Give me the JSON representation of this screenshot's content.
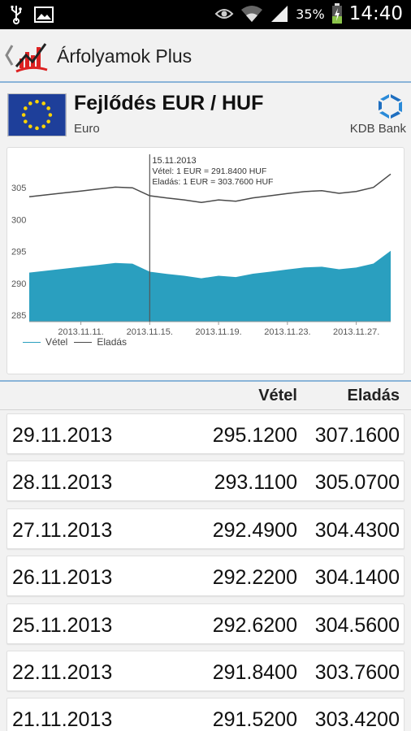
{
  "status_bar": {
    "battery_percent": "35%",
    "time": "14:40",
    "icons": [
      "usb-icon",
      "image-icon",
      "eye-icon",
      "wifi-icon",
      "signal-icon",
      "battery-icon"
    ]
  },
  "action_bar": {
    "title": "Árfolyamok Plus",
    "icons": [
      "back-chevron-icon",
      "app-logo-icon"
    ]
  },
  "header": {
    "title": "Fejlődés EUR / HUF",
    "subtitle": "Euro",
    "bank": "KDB Bank"
  },
  "chart_data": {
    "type": "area",
    "x": [
      "2013.11.08",
      "2013.11.09",
      "2013.11.10",
      "2013.11.11",
      "2013.11.12",
      "2013.11.13",
      "2013.11.14",
      "2013.11.15",
      "2013.11.16",
      "2013.11.17",
      "2013.11.18",
      "2013.11.19",
      "2013.11.20",
      "2013.11.21",
      "2013.11.22",
      "2013.11.23",
      "2013.11.24",
      "2013.11.25",
      "2013.11.26",
      "2013.11.27",
      "2013.11.28",
      "2013.11.29"
    ],
    "tick_labels": [
      "2013.11.11.",
      "2013.11.15.",
      "2013.11.19.",
      "2013.11.23.",
      "2013.11.27."
    ],
    "tick_indices": [
      3,
      7,
      11,
      15,
      19
    ],
    "series": [
      {
        "name": "Vétel",
        "color": "#2a9fbf",
        "values": [
          291.7,
          292.0,
          292.3,
          292.6,
          292.9,
          293.2,
          293.1,
          291.84,
          291.5,
          291.2,
          290.8,
          291.2,
          291.0,
          291.52,
          291.84,
          292.2,
          292.5,
          292.62,
          292.22,
          292.49,
          293.11,
          295.12
        ]
      },
      {
        "name": "Eladás",
        "color": "#4a4a4a",
        "values": [
          303.6,
          303.9,
          304.2,
          304.5,
          304.8,
          305.1,
          305.0,
          303.76,
          303.4,
          303.1,
          302.7,
          303.1,
          302.9,
          303.42,
          303.76,
          304.1,
          304.4,
          304.56,
          304.14,
          304.43,
          305.07,
          307.16
        ]
      }
    ],
    "y_ticks": [
      "285",
      "290",
      "295",
      "300",
      "305"
    ],
    "ylim": [
      284,
      310
    ],
    "tooltip": {
      "index": 7,
      "date": "15.11.2013",
      "line1": "Vétel: 1 EUR = 291.8400 HUF",
      "line2": "Eladás: 1 EUR = 303.7600 HUF"
    },
    "legend": [
      "Vétel",
      "Eladás"
    ],
    "grid": false
  },
  "table": {
    "columns": [
      "Vétel",
      "Eladás"
    ],
    "rows": [
      {
        "date": "29.11.2013",
        "buy": "295.1200",
        "sell": "307.1600"
      },
      {
        "date": "28.11.2013",
        "buy": "293.1100",
        "sell": "305.0700"
      },
      {
        "date": "27.11.2013",
        "buy": "292.4900",
        "sell": "304.4300"
      },
      {
        "date": "26.11.2013",
        "buy": "292.2200",
        "sell": "304.1400"
      },
      {
        "date": "25.11.2013",
        "buy": "292.6200",
        "sell": "304.5600"
      },
      {
        "date": "22.11.2013",
        "buy": "291.8400",
        "sell": "303.7600"
      },
      {
        "date": "21.11.2013",
        "buy": "291.5200",
        "sell": "303.4200"
      }
    ]
  },
  "colors": {
    "accent_line": "#8ab4d8",
    "buy_fill": "#2a9fbf",
    "sell_line": "#4a4a4a"
  }
}
